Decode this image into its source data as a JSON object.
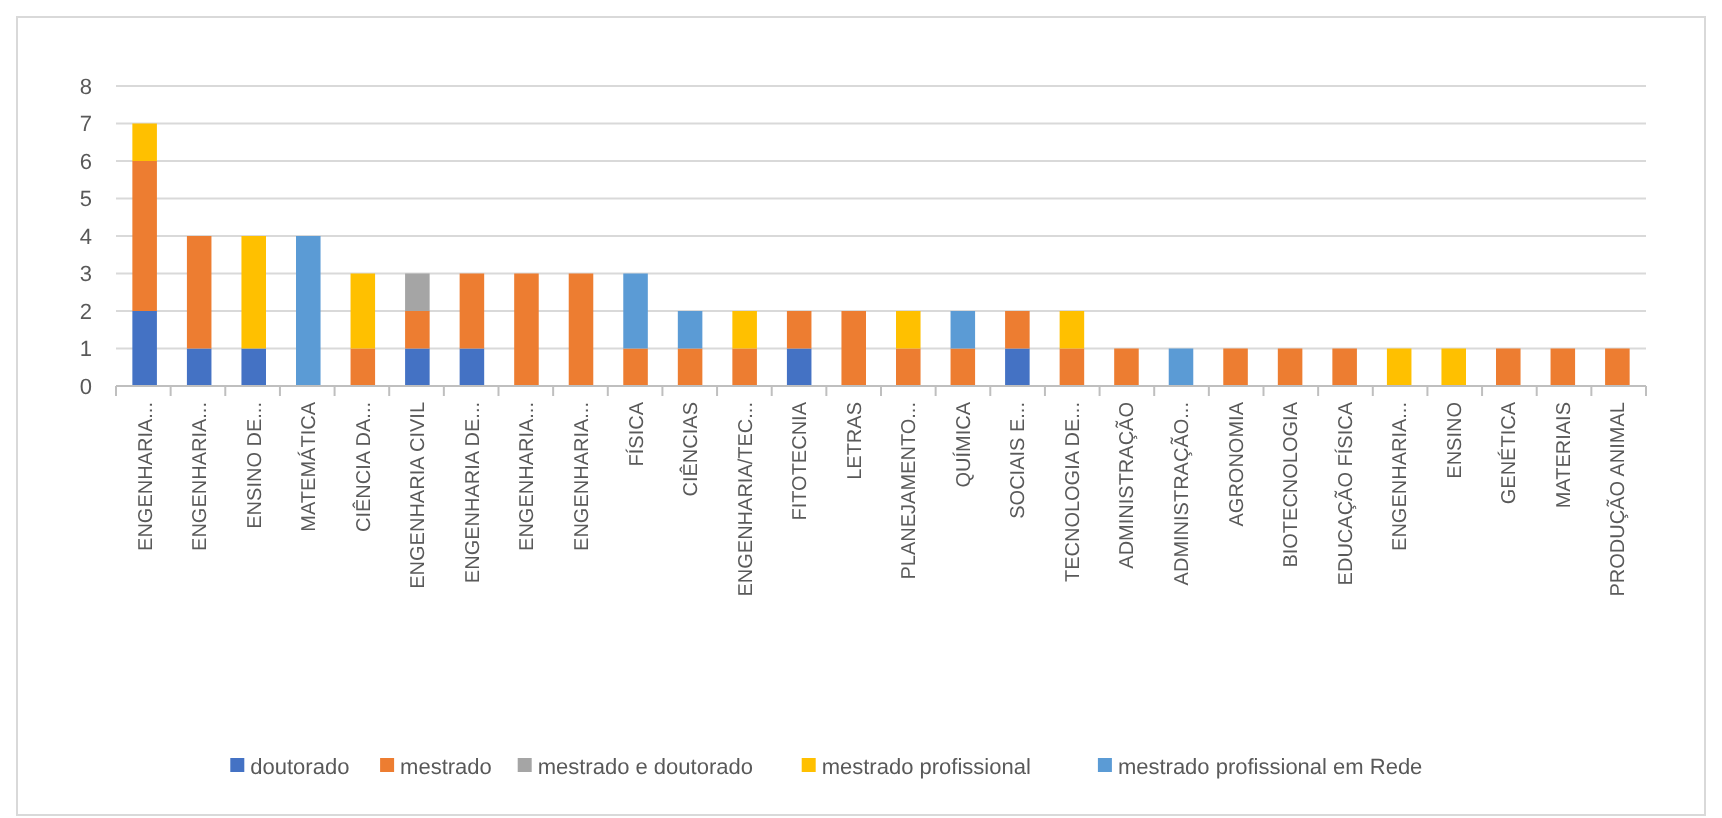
{
  "chart_data": {
    "type": "bar",
    "stacked": true,
    "categories": [
      "ENGENHARIA...",
      "ENGENHARIA...",
      "ENSINO DE...",
      "MATEMÁTICA",
      "CIÊNCIA DA...",
      "ENGENHARIA CIVIL",
      "ENGENHARIA DE...",
      "ENGENHARIA...",
      "ENGENHARIA...",
      "FÍSICA",
      "CIÊNCIAS",
      "ENGENHARIA/TEC...",
      "FITOTECNIA",
      "LETRAS",
      "PLANEJAMENTO...",
      "QUÍMICA",
      "SOCIAIS E...",
      "TECNOLOGIA DE...",
      "ADMINISTRAÇÃO",
      "ADMINISTRAÇÃO...",
      "AGRONOMIA",
      "BIOTECNOLOGIA",
      "EDUCAÇÃO FÍSICA",
      "ENGENHARIA...",
      "ENSINO",
      "GENÉTICA",
      "MATERIAIS",
      "PRODUÇÃO ANIMAL"
    ],
    "series": [
      {
        "name": "doutorado",
        "color": "#4472c4",
        "values": [
          2,
          1,
          1,
          null,
          null,
          1,
          1,
          null,
          null,
          null,
          null,
          null,
          1,
          null,
          null,
          null,
          1,
          null,
          null,
          null,
          null,
          null,
          null,
          null,
          null,
          null,
          null,
          null
        ]
      },
      {
        "name": "mestrado",
        "color": "#ed7d31",
        "values": [
          4,
          3,
          null,
          null,
          1,
          1,
          2,
          3,
          3,
          1,
          1,
          1,
          1,
          2,
          1,
          1,
          1,
          1,
          1,
          null,
          1,
          1,
          1,
          null,
          null,
          1,
          1,
          1
        ]
      },
      {
        "name": "mestrado e doutorado",
        "color": "#a5a5a5",
        "values": [
          null,
          null,
          null,
          null,
          null,
          1,
          null,
          null,
          null,
          null,
          null,
          null,
          null,
          null,
          null,
          null,
          null,
          null,
          null,
          null,
          null,
          null,
          null,
          null,
          null,
          null,
          null,
          null
        ]
      },
      {
        "name": "mestrado profissional",
        "color": "#ffc000",
        "values": [
          1,
          null,
          3,
          null,
          2,
          null,
          null,
          null,
          null,
          null,
          null,
          1,
          null,
          null,
          1,
          null,
          null,
          1,
          null,
          null,
          null,
          null,
          null,
          1,
          1,
          null,
          null,
          null
        ]
      },
      {
        "name": "mestrado profissional em Rede",
        "color": "#5b9bd5",
        "values": [
          null,
          null,
          null,
          4,
          null,
          null,
          null,
          null,
          null,
          2,
          1,
          null,
          null,
          null,
          null,
          1,
          null,
          null,
          null,
          1,
          null,
          null,
          null,
          null,
          null,
          null,
          null,
          null
        ]
      }
    ],
    "ylim": [
      0,
      8
    ],
    "yticks": [
      0,
      1,
      2,
      3,
      4,
      5,
      6,
      7,
      8
    ],
    "grid": "y",
    "legend": "bottom"
  }
}
